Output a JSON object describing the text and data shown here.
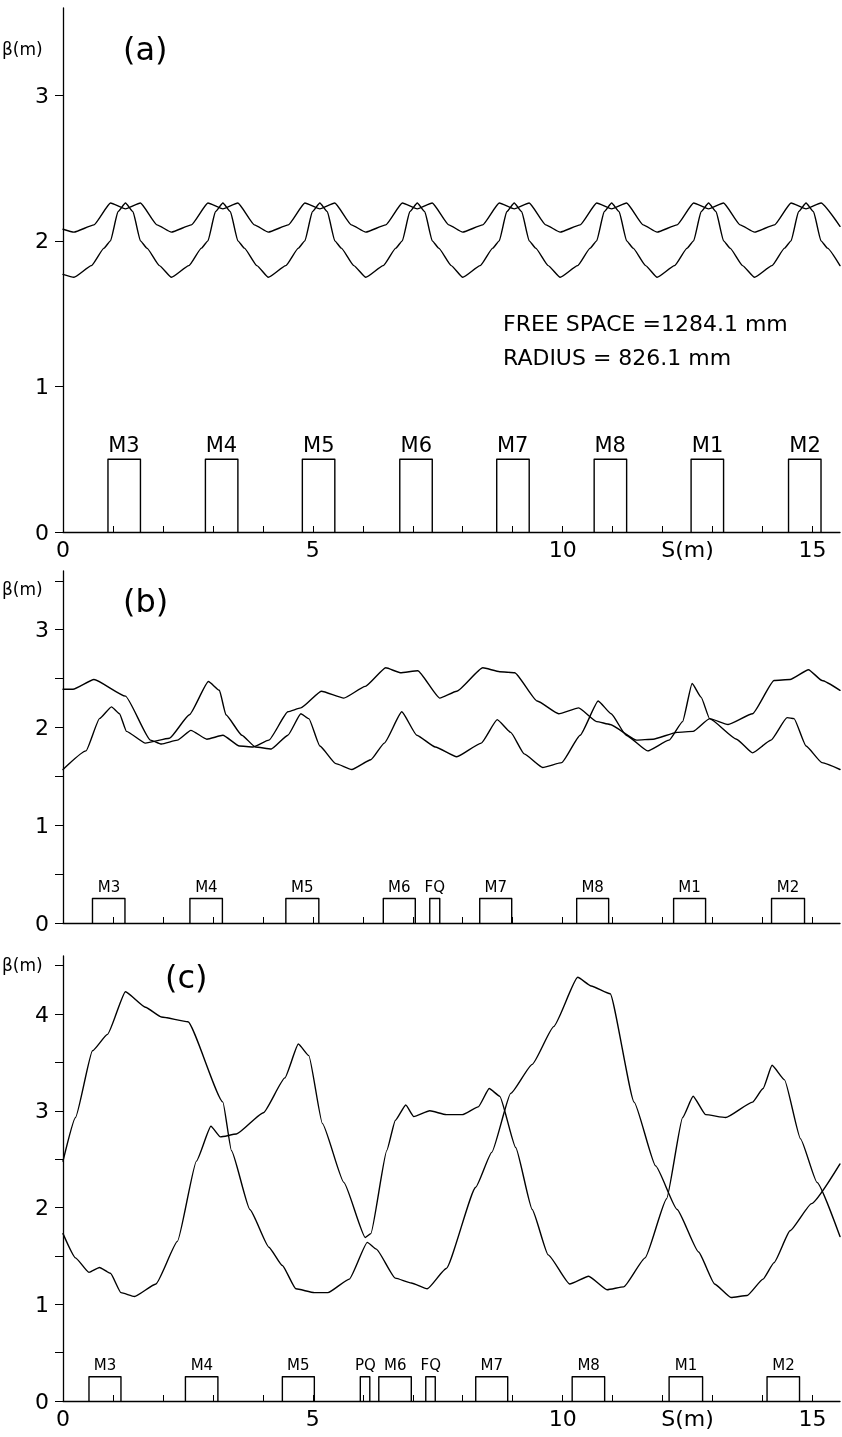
{
  "chart_data": [
    {
      "type": "line",
      "title": "(a)",
      "xlabel": "S(m)",
      "ylabel": "β(m)",
      "xlim": [
        0,
        15.55
      ],
      "ylim": [
        0,
        3.6
      ],
      "xticks": [
        0,
        {
          "value": 1,
          "label": null
        },
        {
          "value": 2,
          "label": null
        },
        {
          "value": 3,
          "label": null
        },
        {
          "value": 4,
          "label": null
        },
        5,
        {
          "value": 6,
          "label": null
        },
        {
          "value": 7,
          "label": null
        },
        {
          "value": 8,
          "label": null
        },
        {
          "value": 9,
          "label": null
        },
        10,
        {
          "value": 11,
          "label": null
        },
        {
          "value": 12,
          "label": null
        },
        {
          "value": 13,
          "label": null
        },
        {
          "value": 14,
          "label": null
        },
        15
      ],
      "yticks": [
        0,
        1,
        2,
        3
      ],
      "series": [
        {
          "color": "#000000",
          "x": [
            0,
            0.22,
            0.57,
            0.82,
            0.95,
            1.1,
            1.25,
            1.4,
            1.55,
            1.68,
            1.93,
            2.17,
            2.52,
            2.77,
            2.9,
            3.05,
            3.2,
            3.35,
            3.5,
            3.63,
            3.88,
            4.11,
            4.46,
            4.71,
            4.84,
            4.99,
            5.14,
            5.29,
            5.44,
            5.57,
            5.82,
            6.06,
            6.41,
            6.66,
            6.79,
            6.94,
            7.09,
            7.24,
            7.39,
            7.52,
            7.77,
            8.0,
            8.35,
            8.6,
            8.73,
            8.88,
            9.03,
            9.18,
            9.33,
            9.46,
            9.71,
            9.95,
            10.3,
            10.55,
            10.68,
            10.83,
            10.98,
            11.13,
            11.28,
            11.41,
            11.66,
            11.89,
            12.24,
            12.49,
            12.62,
            12.77,
            12.92,
            13.07,
            13.22,
            13.35,
            13.6,
            13.84,
            14.19,
            14.44,
            14.57,
            14.72,
            14.87,
            15.02,
            15.17,
            15.3,
            15.55
          ],
          "values": [
            1.77,
            1.75,
            1.83,
            1.95,
            2.0,
            2.2,
            2.26,
            2.2,
            2.0,
            1.95,
            1.83,
            1.75,
            1.83,
            1.95,
            2.0,
            2.2,
            2.26,
            2.2,
            2.0,
            1.95,
            1.83,
            1.75,
            1.83,
            1.95,
            2.0,
            2.2,
            2.26,
            2.2,
            2.0,
            1.95,
            1.83,
            1.75,
            1.83,
            1.95,
            2.0,
            2.2,
            2.26,
            2.2,
            2.0,
            1.95,
            1.83,
            1.75,
            1.83,
            1.95,
            2.0,
            2.2,
            2.26,
            2.2,
            2.0,
            1.95,
            1.83,
            1.75,
            1.83,
            1.95,
            2.0,
            2.2,
            2.26,
            2.2,
            2.0,
            1.95,
            1.83,
            1.75,
            1.83,
            1.95,
            2.0,
            2.2,
            2.26,
            2.2,
            2.0,
            1.95,
            1.83,
            1.75,
            1.83,
            1.95,
            2.0,
            2.2,
            2.26,
            2.2,
            2.0,
            1.95,
            1.83
          ]
        },
        {
          "color": "#000000",
          "x": [
            0,
            0.22,
            0.62,
            0.95,
            1.25,
            1.55,
            1.88,
            2.17,
            2.57,
            2.9,
            3.2,
            3.5,
            3.83,
            4.11,
            4.51,
            4.84,
            5.14,
            5.44,
            5.77,
            6.06,
            6.46,
            6.79,
            7.09,
            7.39,
            7.72,
            8.0,
            8.4,
            8.73,
            9.03,
            9.33,
            9.66,
            9.95,
            10.35,
            10.68,
            10.98,
            11.28,
            11.61,
            11.89,
            12.29,
            12.62,
            12.92,
            13.22,
            13.55,
            13.84,
            14.24,
            14.57,
            14.87,
            15.17,
            15.55
          ],
          "values": [
            2.08,
            2.06,
            2.11,
            2.26,
            2.22,
            2.26,
            2.11,
            2.06,
            2.11,
            2.26,
            2.22,
            2.26,
            2.11,
            2.06,
            2.11,
            2.26,
            2.22,
            2.26,
            2.11,
            2.06,
            2.11,
            2.26,
            2.22,
            2.26,
            2.11,
            2.06,
            2.11,
            2.26,
            2.22,
            2.26,
            2.11,
            2.06,
            2.11,
            2.26,
            2.22,
            2.26,
            2.11,
            2.06,
            2.11,
            2.26,
            2.22,
            2.26,
            2.11,
            2.06,
            2.11,
            2.26,
            2.22,
            2.26,
            2.1
          ]
        },
        {
          "color": "#000000",
          "x": [
            0.9,
            0.9,
            1.22,
            1.55,
            1.55,
            1.65,
            2.85,
            2.85,
            3.17,
            3.5,
            3.5,
            3.6,
            4.79,
            4.79,
            5.12,
            5.44,
            5.44,
            5.54,
            6.74,
            6.74,
            7.07,
            7.39,
            7.39,
            7.49,
            8.68,
            8.68,
            9.0,
            9.33,
            9.33,
            9.43,
            10.63,
            10.63,
            10.95,
            11.28,
            11.28,
            11.38,
            12.57,
            12.57,
            12.9,
            13.22,
            13.22,
            13.32,
            14.52,
            14.52,
            14.85,
            15.17,
            15.17
          ],
          "values": [
            0,
            0.5,
            0.5,
            0.5,
            0,
            null,
            0,
            0.5,
            0.5,
            0.5,
            0,
            null,
            0,
            0.5,
            0.5,
            0.5,
            0,
            null,
            0,
            0.5,
            0.5,
            0.5,
            0,
            null,
            0,
            0.5,
            0.5,
            0.5,
            0,
            null,
            0,
            0.5,
            0.5,
            0.5,
            0,
            null,
            0,
            0.5,
            0.5,
            0.5,
            0,
            null,
            0,
            0.5,
            0.5,
            0.5,
            0
          ],
          "value_labels": [
            null,
            null,
            "M3",
            null,
            null,
            null,
            null,
            null,
            "M4",
            null,
            null,
            null,
            null,
            null,
            "M5",
            null,
            null,
            null,
            null,
            null,
            "M6",
            null,
            null,
            null,
            null,
            null,
            "M7",
            null,
            null,
            null,
            null,
            null,
            "M8",
            null,
            null,
            null,
            null,
            null,
            "M1",
            null,
            null,
            null,
            null,
            null,
            "M2",
            null,
            null
          ]
        }
      ],
      "annotations": [
        "FREE SPACE =1284.1 mm",
        "RADIUS = 826.1 mm"
      ]
    },
    {
      "type": "line",
      "title": "(b)",
      "ylabel": "β(m)",
      "tick_labels": "y",
      "xlim": [
        0,
        15.55
      ],
      "ylim": [
        0,
        3.6
      ],
      "xticks": [
        0,
        {
          "value": 1,
          "label": null
        },
        {
          "value": 2,
          "label": null
        },
        {
          "value": 3,
          "label": null
        },
        {
          "value": 4,
          "label": null
        },
        5,
        {
          "value": 6,
          "label": null
        },
        {
          "value": 7,
          "label": null
        },
        {
          "value": 8,
          "label": null
        },
        {
          "value": 9,
          "label": null
        },
        10,
        {
          "value": 11,
          "label": null
        },
        {
          "value": 12,
          "label": null
        },
        {
          "value": 13,
          "label": null
        },
        {
          "value": 14,
          "label": null
        },
        15
      ],
      "yticks": [
        0,
        {
          "value": 0.5,
          "label": null
        },
        1,
        {
          "value": 1.5,
          "label": null
        },
        2,
        {
          "value": 2.5,
          "label": null
        },
        3,
        {
          "value": 3.5,
          "label": null
        }
      ],
      "series": [
        {
          "color": "#000000",
          "x": [
            0,
            0.2,
            0.62,
            1.25,
            1.75,
            1.97,
            2.29,
            2.56,
            2.88,
            3.2,
            3.53,
            3.8,
            4.12,
            4.5,
            4.76,
            5.17,
            5.62,
            6.05,
            6.46,
            6.75,
            7.1,
            7.54,
            7.88,
            8.4,
            8.74,
            9.04,
            9.49,
            9.92,
            10.32,
            10.68,
            10.95,
            11.48,
            11.81,
            12.29,
            12.61,
            12.94,
            13.31,
            13.8,
            14.23,
            14.55,
            14.92,
            15.19,
            15.55
          ],
          "values": [
            2.39,
            2.39,
            2.49,
            2.32,
            1.87,
            1.83,
            1.87,
            1.97,
            1.88,
            1.92,
            1.81,
            1.8,
            1.87,
            2.16,
            2.2,
            2.37,
            2.3,
            2.42,
            2.61,
            2.56,
            2.58,
            2.3,
            2.37,
            2.61,
            2.57,
            2.56,
            2.27,
            2.14,
            2.2,
            2.06,
            2.03,
            1.87,
            1.88,
            1.95,
            1.96,
            2.09,
            2.03,
            2.14,
            2.48,
            2.49,
            2.59,
            2.48,
            2.38
          ]
        },
        {
          "color": "#000000",
          "x": [
            0,
            0.46,
            0.73,
            0.97,
            1.13,
            1.27,
            1.65,
            2.13,
            2.53,
            2.91,
            3.13,
            3.26,
            3.58,
            3.85,
            4.17,
            4.5,
            4.76,
            4.92,
            5.14,
            5.46,
            5.78,
            6.16,
            6.43,
            6.78,
            7.08,
            7.45,
            7.88,
            8.37,
            8.69,
            8.96,
            9.23,
            9.6,
            9.98,
            10.35,
            10.71,
            10.97,
            11.27,
            11.7,
            12.13,
            12.4,
            12.59,
            12.77,
            12.94,
            13.48,
            13.8,
            14.17,
            14.49,
            14.63,
            14.87,
            15.19,
            15.55
          ],
          "values": [
            1.57,
            1.76,
            2.09,
            2.21,
            2.14,
            1.96,
            1.84,
            1.89,
            2.13,
            2.47,
            2.38,
            2.13,
            1.92,
            1.8,
            1.78,
            1.92,
            2.14,
            2.09,
            1.81,
            1.63,
            1.57,
            1.67,
            1.84,
            2.16,
            1.92,
            1.8,
            1.7,
            1.84,
            2.08,
            1.95,
            1.73,
            1.59,
            1.64,
            1.92,
            2.27,
            2.14,
            1.92,
            1.76,
            1.87,
            2.06,
            2.45,
            2.31,
            2.09,
            1.88,
            1.74,
            1.87,
            2.1,
            2.09,
            1.81,
            1.64,
            1.57
          ]
        },
        {
          "color": "#000000",
          "x": [
            0.59,
            0.59,
            0.92,
            1.24,
            1.24,
            1.34,
            2.54,
            2.54,
            2.87,
            3.19,
            3.19,
            3.29,
            4.46,
            4.46,
            4.79,
            5.12,
            5.12,
            5.22,
            6.41,
            6.41,
            6.73,
            7.05,
            7.05,
            7.2,
            7.34,
            7.34,
            7.44,
            7.54,
            7.54,
            7.64,
            8.34,
            8.34,
            8.66,
            8.98,
            8.98,
            9.08,
            10.28,
            10.28,
            10.6,
            10.92,
            10.92,
            11.02,
            12.22,
            12.22,
            12.54,
            12.86,
            12.86,
            12.96,
            14.18,
            14.18,
            14.51,
            14.84,
            14.84
          ],
          "values": [
            0,
            0.25,
            0.25,
            0.25,
            0,
            null,
            0,
            0.25,
            0.25,
            0.25,
            0,
            null,
            0,
            0.25,
            0.25,
            0.25,
            0,
            null,
            0,
            0.25,
            0.25,
            0.25,
            0,
            null,
            0,
            0.25,
            0.25,
            0.25,
            0,
            null,
            0,
            0.25,
            0.25,
            0.25,
            0,
            null,
            0,
            0.25,
            0.25,
            0.25,
            0,
            null,
            0,
            0.25,
            0.25,
            0.25,
            0,
            null,
            0,
            0.25,
            0.25,
            0.25,
            0
          ],
          "value_labels": [
            null,
            null,
            "M3",
            null,
            null,
            null,
            null,
            null,
            "M4",
            null,
            null,
            null,
            null,
            null,
            "M5",
            null,
            null,
            null,
            null,
            null,
            "M6",
            null,
            null,
            null,
            null,
            null,
            "FQ",
            null,
            null,
            null,
            null,
            null,
            "M7",
            null,
            null,
            null,
            null,
            null,
            "M8",
            null,
            null,
            null,
            null,
            null,
            "M1",
            null,
            null,
            null,
            null,
            null,
            "M2",
            null,
            null
          ]
        }
      ]
    },
    {
      "type": "line",
      "title": "(c)",
      "xlabel": "S(m)",
      "ylabel": "β(m)",
      "xlim": [
        0,
        15.55
      ],
      "ylim": [
        0,
        4.6
      ],
      "xticks": [
        0,
        {
          "value": 1,
          "label": null
        },
        {
          "value": 2,
          "label": null
        },
        {
          "value": 3,
          "label": null
        },
        {
          "value": 4,
          "label": null
        },
        5,
        {
          "value": 6,
          "label": null
        },
        {
          "value": 7,
          "label": null
        },
        {
          "value": 8,
          "label": null
        },
        {
          "value": 9,
          "label": null
        },
        10,
        {
          "value": 11,
          "label": null
        },
        {
          "value": 12,
          "label": null
        },
        {
          "value": 13,
          "label": null
        },
        {
          "value": 14,
          "label": null
        },
        15
      ],
      "yticks": [
        0,
        {
          "value": 0.5,
          "label": null
        },
        1,
        {
          "value": 1.5,
          "label": null
        },
        2,
        {
          "value": 2.5,
          "label": null
        },
        3,
        {
          "value": 3.5,
          "label": null
        },
        4,
        {
          "value": 4.5,
          "label": null
        }
      ],
      "series": [
        {
          "color": "#000000",
          "x": [
            0,
            0.25,
            0.59,
            0.89,
            1.25,
            1.65,
            1.97,
            2.5,
            3.2,
            3.37,
            3.74,
            4.12,
            4.39,
            4.66,
            5.03,
            5.3,
            5.73,
            6.09,
            6.27,
            6.65,
            6.97,
            7.29,
            7.67,
            8.26,
            8.58,
            8.96,
            9.39,
            9.82,
            10.3,
            10.57,
            10.95,
            11.43,
            11.86,
            12.29,
            12.72,
            13.04,
            13.37,
            13.69,
            14.01,
            14.23,
            14.55,
            14.98,
            15.55
          ],
          "values": [
            2.48,
            2.93,
            3.62,
            3.79,
            4.23,
            4.07,
            3.97,
            3.92,
            3.09,
            2.59,
            1.98,
            1.59,
            1.4,
            1.16,
            1.12,
            1.12,
            1.26,
            1.64,
            1.57,
            1.27,
            1.22,
            1.16,
            1.37,
            2.21,
            2.57,
            3.18,
            3.48,
            3.87,
            4.38,
            4.29,
            4.21,
            3.09,
            2.43,
            1.98,
            1.54,
            1.21,
            1.07,
            1.09,
            1.26,
            1.43,
            1.76,
            2.04,
            2.45
          ]
        },
        {
          "color": "#000000",
          "x": [
            0,
            0.25,
            0.52,
            0.73,
            0.95,
            1.16,
            1.43,
            1.86,
            2.29,
            2.67,
            2.96,
            3.15,
            3.47,
            4.01,
            4.44,
            4.71,
            4.92,
            5.19,
            5.62,
            6.05,
            6.16,
            6.48,
            6.65,
            6.86,
            7.02,
            7.34,
            7.67,
            7.99,
            8.31,
            8.53,
            8.74,
            9.06,
            9.39,
            9.71,
            10.14,
            10.52,
            10.89,
            11.22,
            11.65,
            12.08,
            12.4,
            12.61,
            12.86,
            13.26,
            13.8,
            14.01,
            14.19,
            14.44,
            14.76,
            15.09,
            15.55
          ],
          "values": [
            1.73,
            1.48,
            1.33,
            1.38,
            1.32,
            1.12,
            1.08,
            1.21,
            1.65,
            2.48,
            2.84,
            2.73,
            2.76,
            2.98,
            3.34,
            3.69,
            3.57,
            2.87,
            2.26,
            1.69,
            1.73,
            2.59,
            2.9,
            3.06,
            2.94,
            3.0,
            2.96,
            2.96,
            3.04,
            3.23,
            3.15,
            2.62,
            1.98,
            1.51,
            1.21,
            1.29,
            1.15,
            1.18,
            1.48,
            2.09,
            2.93,
            3.15,
            2.96,
            2.93,
            3.09,
            3.23,
            3.47,
            3.32,
            2.71,
            2.26,
            1.7
          ]
        },
        {
          "color": "#000000",
          "x": [
            0.52,
            0.52,
            0.84,
            1.16,
            1.16,
            1.26,
            2.45,
            2.45,
            2.78,
            3.1,
            3.1,
            3.2,
            4.39,
            4.39,
            4.71,
            5.03,
            5.03,
            5.13,
            5.95,
            5.95,
            6.05,
            6.14,
            6.14,
            6.23,
            6.32,
            6.32,
            6.65,
            6.97,
            6.97,
            7.1,
            7.26,
            7.26,
            7.36,
            7.45,
            7.45,
            7.55,
            8.26,
            8.26,
            8.58,
            8.9,
            8.9,
            9.0,
            10.19,
            10.19,
            10.52,
            10.84,
            10.84,
            10.94,
            12.13,
            12.13,
            12.47,
            12.8,
            12.8,
            12.9,
            14.09,
            14.09,
            14.42,
            14.74,
            14.74
          ],
          "values": [
            0,
            0.25,
            0.25,
            0.25,
            0,
            null,
            0,
            0.25,
            0.25,
            0.25,
            0,
            null,
            0,
            0.25,
            0.25,
            0.25,
            0,
            null,
            0,
            0.25,
            0.25,
            0.25,
            0,
            null,
            0,
            0.25,
            0.25,
            0.25,
            0,
            null,
            0,
            0.25,
            0.25,
            0.25,
            0,
            null,
            0,
            0.25,
            0.25,
            0.25,
            0,
            null,
            0,
            0.25,
            0.25,
            0.25,
            0,
            null,
            0,
            0.25,
            0.25,
            0.25,
            0,
            null,
            0,
            0.25,
            0.25,
            0.25,
            0
          ],
          "value_labels": [
            null,
            null,
            "M3",
            null,
            null,
            null,
            null,
            null,
            "M4",
            null,
            null,
            null,
            null,
            null,
            "M5",
            null,
            null,
            null,
            null,
            null,
            "PQ",
            null,
            null,
            null,
            null,
            null,
            "M6",
            null,
            null,
            null,
            null,
            null,
            "FQ",
            null,
            null,
            null,
            null,
            null,
            "M7",
            null,
            null,
            null,
            null,
            null,
            "M8",
            null,
            null,
            null,
            null,
            null,
            "M1",
            null,
            null,
            null,
            null,
            null,
            "M2",
            null,
            null
          ]
        }
      ]
    }
  ]
}
